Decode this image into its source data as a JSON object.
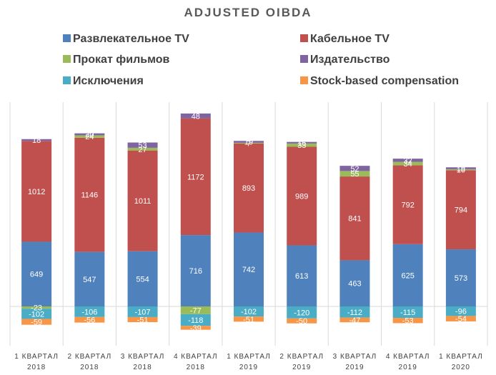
{
  "chart_data": {
    "type": "bar",
    "stacked": true,
    "title": "ADJUSTED OIBDA",
    "xlabel": "",
    "ylabel": "",
    "ylim": [
      -160,
      2050
    ],
    "grid": "vertical separators between categories",
    "legend_position": "top",
    "categories": [
      [
        "1 КВАРТАЛ",
        "2018"
      ],
      [
        "2 КВАРТАЛ",
        "2018"
      ],
      [
        "3 КВАРТАЛ",
        "2018"
      ],
      [
        "4 КВАРТАЛ",
        "2018"
      ],
      [
        "1 КВАРТАЛ",
        "2019"
      ],
      [
        "2 КВАРТАЛ",
        "2019"
      ],
      [
        "3 КВАРТАЛ",
        "2019"
      ],
      [
        "4 КВАРТАЛ",
        "2019"
      ],
      [
        "1 КВАРТАЛ",
        "2020"
      ]
    ],
    "series": [
      {
        "name": "Развлекательное TV",
        "color": "#4f81bd",
        "values": [
          649,
          547,
          554,
          716,
          742,
          613,
          463,
          625,
          573
        ]
      },
      {
        "name": "Кабельное TV",
        "color": "#c0504d",
        "values": [
          1012,
          1146,
          1011,
          1172,
          893,
          989,
          841,
          792,
          794
        ]
      },
      {
        "name": "Прокат фильмов",
        "color": "#9bbb59",
        "values": [
          -23,
          24,
          27,
          -77,
          7,
          33,
          55,
          34,
          10
        ]
      },
      {
        "name": "Издательство",
        "color": "#8064a2",
        "values": [
          18,
          20,
          53,
          48,
          19,
          16,
          52,
          32,
          19
        ]
      },
      {
        "name": "Исключения",
        "color": "#4bacc6",
        "values": [
          -102,
          -106,
          -107,
          -118,
          -102,
          -120,
          -112,
          -115,
          -96
        ]
      },
      {
        "name": "Stock-based compensation",
        "color": "#f79646",
        "values": [
          -59,
          -56,
          -51,
          -39,
          -51,
          -50,
          -47,
          -53,
          -54
        ]
      }
    ]
  }
}
